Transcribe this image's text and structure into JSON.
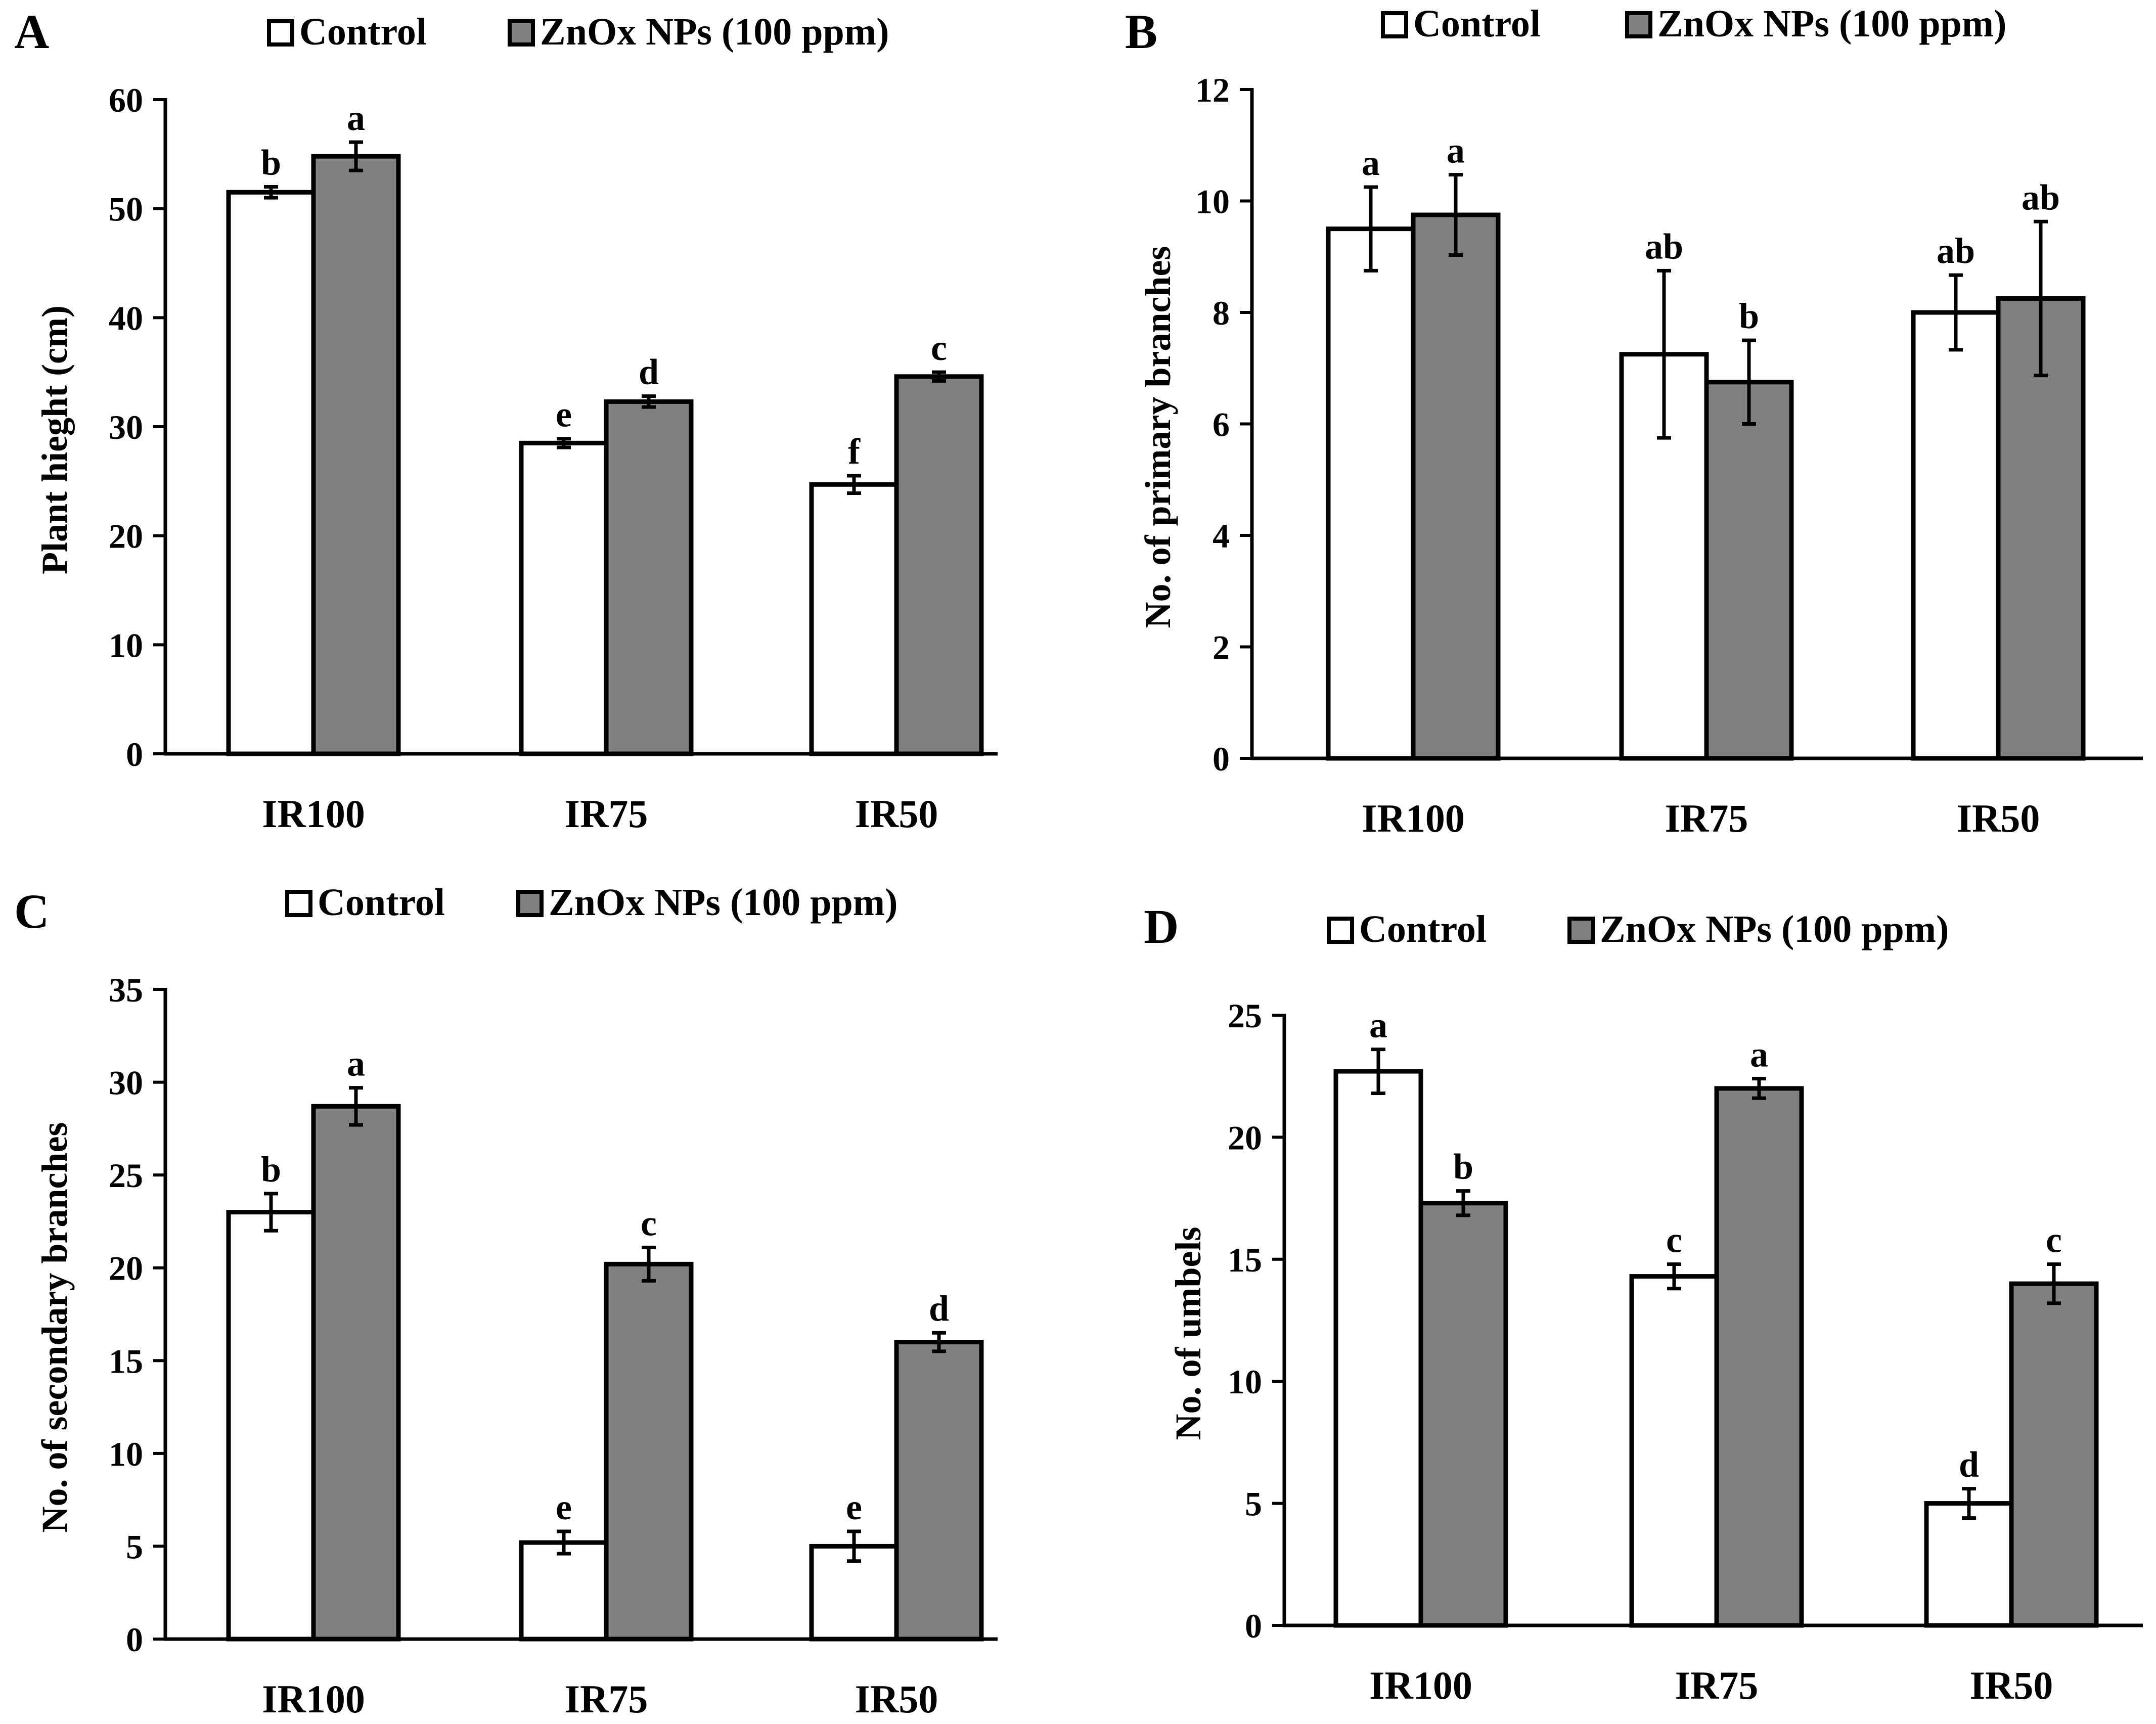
{
  "legend": {
    "control": "Control",
    "treated": "ZnOx NPs (100 ppm)"
  },
  "colors": {
    "control_fill": "#ffffff",
    "treated_fill": "#808080",
    "stroke": "#000000"
  },
  "chart_data": [
    {
      "panel": "A",
      "type": "bar",
      "ylabel": "Plant hieght (cm)",
      "ylim": [
        0,
        60
      ],
      "ytick_step": 10,
      "categories": [
        "IR100",
        "IR75",
        "IR50"
      ],
      "series": [
        {
          "name": "Control",
          "values": [
            51.5,
            28.5,
            24.7
          ],
          "errors": [
            0.5,
            0.4,
            0.8
          ],
          "letters": [
            "b",
            "e",
            "f"
          ]
        },
        {
          "name": "ZnOx NPs (100 ppm)",
          "values": [
            54.8,
            32.3,
            34.6
          ],
          "errors": [
            1.3,
            0.5,
            0.4
          ],
          "letters": [
            "a",
            "d",
            "c"
          ]
        }
      ],
      "legend_position": "top",
      "grid": false
    },
    {
      "panel": "B",
      "type": "bar",
      "ylabel": "No. of primary branches",
      "ylim": [
        0,
        12
      ],
      "ytick_step": 2,
      "categories": [
        "IR100",
        "IR75",
        "IR50"
      ],
      "series": [
        {
          "name": "Control",
          "values": [
            9.5,
            7.25,
            8.0
          ],
          "errors": [
            0.75,
            1.5,
            0.67
          ],
          "letters": [
            "a",
            "ab",
            "ab"
          ]
        },
        {
          "name": "ZnOx NPs (100 ppm)",
          "values": [
            9.75,
            6.75,
            8.25
          ],
          "errors": [
            0.72,
            0.75,
            1.38
          ],
          "letters": [
            "a",
            "b",
            "ab"
          ]
        }
      ],
      "legend_position": "top",
      "grid": false
    },
    {
      "panel": "C",
      "type": "bar",
      "ylabel": "No. of secondary branches",
      "ylim": [
        0,
        35
      ],
      "ytick_step": 5,
      "categories": [
        "IR100",
        "IR75",
        "IR50"
      ],
      "series": [
        {
          "name": "Control",
          "values": [
            23.0,
            5.2,
            5.0
          ],
          "errors": [
            1.0,
            0.6,
            0.8
          ],
          "letters": [
            "b",
            "e",
            "e"
          ]
        },
        {
          "name": "ZnOx NPs (100 ppm)",
          "values": [
            28.7,
            20.2,
            16.0
          ],
          "errors": [
            1.0,
            0.9,
            0.5
          ],
          "letters": [
            "a",
            "c",
            "d"
          ]
        }
      ],
      "legend_position": "top",
      "grid": false
    },
    {
      "panel": "D",
      "type": "bar",
      "ylabel": "No. of umbels",
      "ylim": [
        0,
        25
      ],
      "ytick_step": 5,
      "categories": [
        "IR100",
        "IR75",
        "IR50"
      ],
      "series": [
        {
          "name": "Control",
          "values": [
            22.7,
            14.3,
            5.0
          ],
          "errors": [
            0.9,
            0.5,
            0.6
          ],
          "letters": [
            "a",
            "c",
            "d"
          ]
        },
        {
          "name": "ZnOx NPs (100 ppm)",
          "values": [
            17.3,
            22.0,
            14.0
          ],
          "errors": [
            0.5,
            0.4,
            0.8
          ],
          "letters": [
            "b",
            "a",
            "c"
          ]
        }
      ],
      "legend_position": "top",
      "grid": false
    }
  ]
}
